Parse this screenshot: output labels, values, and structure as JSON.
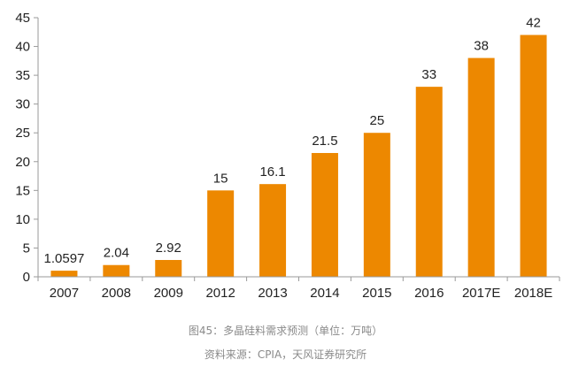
{
  "colors": {
    "bar": "#ED8800",
    "axis": "#9a9a9a",
    "text": "#222222",
    "caption": "#8a8a8a"
  },
  "chart_data": {
    "type": "bar",
    "categories": [
      "2007",
      "2008",
      "2009",
      "2012",
      "2013",
      "2014",
      "2015",
      "2016",
      "2017E",
      "2018E"
    ],
    "values": [
      1.0597,
      2.04,
      2.92,
      15,
      16.1,
      21.5,
      25,
      33,
      38,
      42
    ],
    "data_labels": [
      "1.0597",
      "2.04",
      "2.92",
      "15",
      "16.1",
      "21.5",
      "25",
      "33",
      "38",
      "42"
    ],
    "ylim": [
      0,
      45
    ],
    "yticks": [
      0,
      5,
      10,
      15,
      20,
      25,
      30,
      35,
      40,
      45
    ],
    "grid": false,
    "legend": "none",
    "xlabel": "",
    "ylabel": ""
  },
  "caption": {
    "title": "图45：多晶硅料需求预测（单位：万吨）",
    "source": "资料来源：CPIA，天风证券研究所"
  }
}
